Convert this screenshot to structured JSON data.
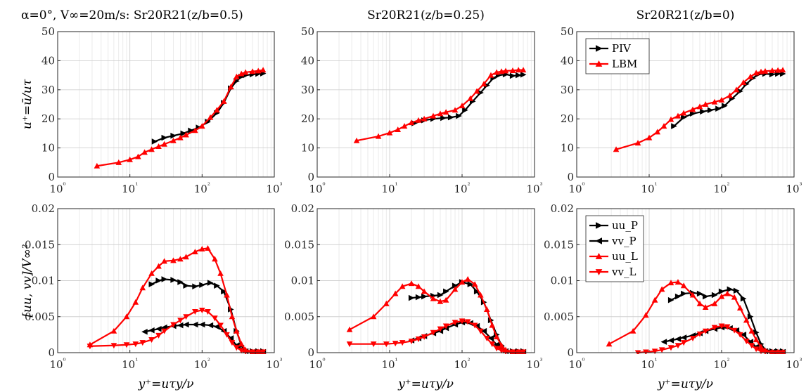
{
  "chart_data": [
    {
      "type": "line",
      "title": "α=0°,  V∞=20m/s:  Sr20R21(z/b=0.5)",
      "xscale": "log",
      "xlim": [
        1,
        1000
      ],
      "ylim": [
        0,
        50
      ],
      "yticks": [
        "0",
        "10",
        "20",
        "30",
        "40",
        "50"
      ],
      "ylabel": "u⁺=ū/uτ",
      "xlabel": "",
      "grid": true,
      "series": [
        {
          "name": "PIV",
          "color": "#000000",
          "marker": "tri-right",
          "x": [
            22,
            30,
            40,
            55,
            70,
            90,
            120,
            160,
            200,
            250,
            300,
            350,
            400,
            500,
            600,
            700
          ],
          "y": [
            12.2,
            13.5,
            14.2,
            15,
            16,
            17,
            19,
            22,
            25.5,
            30.5,
            33,
            34.5,
            35,
            35.3,
            35.5,
            35.6
          ]
        },
        {
          "name": "LBM",
          "color": "#ff0000",
          "marker": "tri-up",
          "x": [
            3.5,
            7,
            10,
            13,
            16,
            20,
            25,
            30,
            40,
            50,
            60,
            80,
            100,
            130,
            160,
            200,
            250,
            300,
            350,
            400,
            500,
            600,
            700
          ],
          "y": [
            3.8,
            5,
            6,
            7,
            8.5,
            9.5,
            10.5,
            11.3,
            12.5,
            13.5,
            14.5,
            16,
            17.5,
            20.5,
            23,
            26,
            31,
            34.5,
            35.5,
            36,
            36.3,
            36.5,
            36.8
          ]
        }
      ]
    },
    {
      "type": "line",
      "title": "Sr20R21(z/b=0.25)",
      "xscale": "log",
      "xlim": [
        1,
        1000
      ],
      "ylim": [
        0,
        50
      ],
      "yticks": [
        "0",
        "10",
        "20",
        "30",
        "40",
        "50"
      ],
      "ylabel": "",
      "xlabel": "",
      "grid": true,
      "series": [
        {
          "name": "PIV",
          "color": "#000000",
          "marker": "tri-right",
          "x": [
            22,
            30,
            40,
            55,
            70,
            90,
            110,
            140,
            180,
            220,
            270,
            320,
            400,
            500,
            600,
            700
          ],
          "y": [
            18.5,
            19.5,
            20,
            20.3,
            20.5,
            21,
            23,
            26,
            29,
            31.5,
            34,
            35,
            35.3,
            34.8,
            35,
            35.2
          ]
        },
        {
          "name": "LBM",
          "color": "#ff0000",
          "marker": "tri-up",
          "x": [
            3.5,
            7,
            10,
            13,
            16,
            20,
            25,
            30,
            40,
            50,
            60,
            80,
            100,
            130,
            160,
            200,
            250,
            300,
            350,
            400,
            500,
            600,
            700
          ],
          "y": [
            12.5,
            14,
            15.2,
            16.3,
            17.5,
            18.7,
            19.5,
            20,
            21,
            21.8,
            22.3,
            23,
            24.5,
            27,
            29.5,
            32,
            35,
            36,
            36.3,
            36.5,
            36.6,
            36.8,
            36.8
          ]
        }
      ]
    },
    {
      "type": "line",
      "title": "Sr20R21(z/b=0)",
      "xscale": "log",
      "xlim": [
        1,
        1000
      ],
      "ylim": [
        0,
        50
      ],
      "yticks": [
        "0",
        "10",
        "20",
        "30",
        "40",
        "50"
      ],
      "ylabel": "",
      "xlabel": "",
      "grid": true,
      "series": [
        {
          "name": "PIV",
          "color": "#000000",
          "marker": "tri-right",
          "x": [
            22,
            30,
            40,
            55,
            70,
            90,
            110,
            140,
            180,
            220,
            270,
            320,
            400,
            500,
            600,
            700
          ],
          "y": [
            17.5,
            20.5,
            21.8,
            22.5,
            23,
            23.5,
            24.5,
            27,
            29.5,
            32,
            34,
            35.3,
            35.5,
            35.3,
            35.5,
            35.5
          ]
        },
        {
          "name": "LBM",
          "color": "#ff0000",
          "marker": "tri-up",
          "x": [
            3.5,
            7,
            10,
            13,
            16,
            20,
            25,
            30,
            40,
            50,
            60,
            80,
            100,
            130,
            160,
            200,
            250,
            300,
            350,
            400,
            500,
            600,
            700
          ],
          "y": [
            9.5,
            11.7,
            13.5,
            15.5,
            17.5,
            19.8,
            21,
            22,
            23.2,
            24.2,
            25,
            25.8,
            26.5,
            28,
            30,
            32.5,
            34.5,
            35.8,
            36.2,
            36.4,
            36.6,
            36.7,
            36.8
          ]
        }
      ],
      "legend": {
        "position": "top-left",
        "entries": [
          "PIV",
          "LBM"
        ]
      }
    },
    {
      "type": "line",
      "title": "",
      "xscale": "log",
      "xlim": [
        1,
        1000
      ],
      "ylim": [
        0,
        0.02
      ],
      "yticks": [
        "0",
        "0.005",
        "0.01",
        "0.015",
        "0.02"
      ],
      "ylabel": "[uu, vv]/V∞²",
      "xlabel": "y⁺=uτy/ν",
      "grid": true,
      "series": [
        {
          "name": "uu_P",
          "color": "#000000",
          "marker": "tri-right",
          "x": [
            20,
            25,
            30,
            40,
            50,
            60,
            80,
            100,
            130,
            160,
            200,
            250,
            300,
            350,
            400,
            500,
            600,
            700
          ],
          "y": [
            0.0095,
            0.01,
            0.0102,
            0.0101,
            0.0098,
            0.0093,
            0.0092,
            0.0094,
            0.0097,
            0.0093,
            0.0085,
            0.006,
            0.003,
            0.001,
            0.0003,
            0.0002,
            0.0002,
            0.0002
          ]
        },
        {
          "name": "vv_P",
          "color": "#000000",
          "marker": "tri-left",
          "x": [
            16,
            20,
            25,
            30,
            40,
            50,
            60,
            80,
            100,
            130,
            160,
            200,
            250,
            300,
            350,
            400,
            500,
            600,
            700
          ],
          "y": [
            0.0029,
            0.0031,
            0.0033,
            0.0035,
            0.0037,
            0.0038,
            0.0039,
            0.0039,
            0.0039,
            0.0038,
            0.0036,
            0.003,
            0.002,
            0.001,
            0.0005,
            0.0002,
            0.0001,
            0.0001,
            0.0001
          ]
        },
        {
          "name": "uu_L",
          "color": "#ff0000",
          "marker": "tri-up",
          "x": [
            2.8,
            6,
            9,
            12,
            15,
            20,
            25,
            30,
            40,
            50,
            60,
            80,
            100,
            120,
            150,
            180,
            220,
            260,
            300,
            350,
            400,
            500,
            600,
            700
          ],
          "y": [
            0.0011,
            0.003,
            0.005,
            0.007,
            0.009,
            0.011,
            0.012,
            0.0127,
            0.0128,
            0.013,
            0.0133,
            0.014,
            0.0144,
            0.0145,
            0.013,
            0.011,
            0.008,
            0.005,
            0.003,
            0.0012,
            0.0004,
            0.0001,
            0.0001,
            0.0001
          ]
        },
        {
          "name": "vv_L",
          "color": "#ff0000",
          "marker": "tri-down",
          "x": [
            2.8,
            6,
            9,
            12,
            15,
            20,
            25,
            30,
            40,
            50,
            60,
            80,
            100,
            120,
            150,
            180,
            220,
            260,
            300,
            350,
            400,
            500,
            600,
            700
          ],
          "y": [
            0.0009,
            0.001,
            0.0011,
            0.0012,
            0.0014,
            0.0018,
            0.0024,
            0.003,
            0.0039,
            0.0045,
            0.005,
            0.0057,
            0.0059,
            0.0057,
            0.0048,
            0.0038,
            0.0025,
            0.0014,
            0.0007,
            0.0003,
            0.0001,
            0.0001,
            0.0001,
            0.0001
          ]
        }
      ]
    },
    {
      "type": "line",
      "title": "",
      "xscale": "log",
      "xlim": [
        1,
        1000
      ],
      "ylim": [
        0,
        0.02
      ],
      "yticks": [
        "0",
        "0.005",
        "0.01",
        "0.015",
        "0.02"
      ],
      "ylabel": "",
      "xlabel": "y⁺=uτy/ν",
      "grid": true,
      "series": [
        {
          "name": "uu_P",
          "color": "#000000",
          "marker": "tri-right",
          "x": [
            20,
            25,
            30,
            40,
            50,
            60,
            80,
            100,
            130,
            160,
            200,
            250,
            300,
            350,
            400,
            500,
            600,
            700
          ],
          "y": [
            0.0076,
            0.0077,
            0.0078,
            0.0079,
            0.008,
            0.0085,
            0.0093,
            0.0098,
            0.0095,
            0.0085,
            0.007,
            0.0045,
            0.0025,
            0.001,
            0.0003,
            0.0002,
            0.0002,
            0.0002
          ]
        },
        {
          "name": "vv_P",
          "color": "#000000",
          "marker": "tri-left",
          "x": [
            20,
            25,
            30,
            40,
            50,
            60,
            80,
            100,
            130,
            160,
            200,
            250,
            300,
            350,
            400,
            500,
            600,
            700
          ],
          "y": [
            0.0017,
            0.002,
            0.0023,
            0.0027,
            0.003,
            0.0034,
            0.0039,
            0.0042,
            0.0041,
            0.0037,
            0.003,
            0.002,
            0.0011,
            0.0005,
            0.0002,
            0.0001,
            0.0001,
            0.0001
          ]
        },
        {
          "name": "uu_L",
          "color": "#ff0000",
          "marker": "tri-up",
          "x": [
            2.8,
            6,
            9,
            12,
            15,
            20,
            25,
            30,
            40,
            50,
            60,
            80,
            100,
            120,
            150,
            180,
            220,
            260,
            300,
            350,
            400,
            500,
            600,
            700
          ],
          "y": [
            0.0032,
            0.005,
            0.0068,
            0.0082,
            0.0092,
            0.0096,
            0.0092,
            0.0085,
            0.0075,
            0.0071,
            0.0073,
            0.0088,
            0.0098,
            0.0102,
            0.0095,
            0.008,
            0.006,
            0.0038,
            0.0022,
            0.001,
            0.0004,
            0.0001,
            0.0001,
            0.0001
          ]
        },
        {
          "name": "vv_L",
          "color": "#ff0000",
          "marker": "tri-down",
          "x": [
            2.8,
            6,
            9,
            12,
            15,
            20,
            25,
            30,
            40,
            50,
            60,
            80,
            100,
            120,
            150,
            180,
            220,
            260,
            300,
            350,
            400,
            500,
            600,
            700
          ],
          "y": [
            0.0012,
            0.0012,
            0.0012,
            0.0013,
            0.0014,
            0.0016,
            0.0019,
            0.0022,
            0.0028,
            0.0033,
            0.0037,
            0.0042,
            0.0044,
            0.0043,
            0.0038,
            0.003,
            0.002,
            0.0012,
            0.0006,
            0.0003,
            0.0001,
            0.0001,
            0.0001,
            0.0001
          ]
        }
      ]
    },
    {
      "type": "line",
      "title": "",
      "xscale": "log",
      "xlim": [
        1,
        1000
      ],
      "ylim": [
        0,
        0.02
      ],
      "yticks": [
        "0",
        "0.005",
        "0.01",
        "0.015",
        "0.02"
      ],
      "ylabel": "",
      "xlabel": "y⁺=uτy/ν",
      "grid": true,
      "series": [
        {
          "name": "uu_P",
          "color": "#000000",
          "marker": "tri-right",
          "x": [
            20,
            25,
            30,
            40,
            50,
            60,
            80,
            100,
            130,
            160,
            200,
            250,
            300,
            350,
            400,
            500,
            600,
            700
          ],
          "y": [
            0.0073,
            0.0078,
            0.0082,
            0.0083,
            0.0082,
            0.0078,
            0.008,
            0.0085,
            0.0088,
            0.0086,
            0.0075,
            0.005,
            0.0028,
            0.0012,
            0.0004,
            0.0002,
            0.0002,
            0.0002
          ]
        },
        {
          "name": "vv_P",
          "color": "#000000",
          "marker": "tri-left",
          "x": [
            16,
            20,
            25,
            30,
            40,
            50,
            60,
            80,
            100,
            130,
            160,
            200,
            250,
            300,
            350,
            400,
            500,
            600,
            700
          ],
          "y": [
            0.0015,
            0.0017,
            0.0019,
            0.0021,
            0.0024,
            0.0027,
            0.003,
            0.0033,
            0.0035,
            0.0034,
            0.0031,
            0.0025,
            0.0015,
            0.0008,
            0.0004,
            0.0002,
            0.0001,
            0.0001,
            0.0001
          ]
        },
        {
          "name": "uu_L",
          "color": "#ff0000",
          "marker": "tri-up",
          "x": [
            2.8,
            6,
            9,
            12,
            15,
            20,
            25,
            30,
            40,
            50,
            60,
            80,
            100,
            120,
            150,
            180,
            220,
            260,
            300,
            350,
            400,
            500,
            600,
            700
          ],
          "y": [
            0.0012,
            0.003,
            0.0052,
            0.0073,
            0.0088,
            0.0097,
            0.0098,
            0.0093,
            0.008,
            0.0068,
            0.0063,
            0.0068,
            0.0078,
            0.0082,
            0.0077,
            0.0062,
            0.0045,
            0.003,
            0.0018,
            0.0008,
            0.0003,
            0.0001,
            0.0001,
            0.0001
          ]
        },
        {
          "name": "vv_L",
          "color": "#ff0000",
          "marker": "tri-down",
          "x": [
            7,
            9,
            12,
            15,
            20,
            25,
            30,
            40,
            50,
            60,
            80,
            100,
            120,
            150,
            180,
            220,
            260,
            300,
            350,
            400,
            500,
            600,
            700
          ],
          "y": [
            0,
            0.0001,
            0.0002,
            0.0004,
            0.0007,
            0.001,
            0.0014,
            0.002,
            0.0026,
            0.003,
            0.0035,
            0.0037,
            0.0036,
            0.0031,
            0.0025,
            0.0016,
            0.001,
            0.0005,
            0.0002,
            0.0001,
            0,
            0,
            0
          ]
        }
      ],
      "legend": {
        "position": "top-left",
        "entries": [
          "uu_P",
          "vv_P",
          "uu_L",
          "vv_L"
        ]
      }
    }
  ],
  "xtick_labels": [
    "10⁰",
    "10¹",
    "10²",
    "10³"
  ]
}
